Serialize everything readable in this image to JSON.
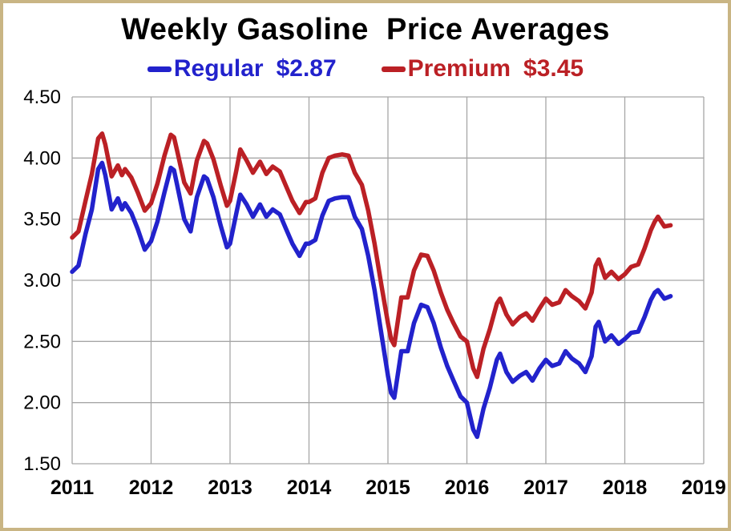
{
  "window": {
    "border_color": "#c9b584",
    "background": "#ffffff"
  },
  "chart_data": {
    "type": "line",
    "title": "Weekly Gasoline  Price Averages",
    "xlabel": "",
    "ylabel": "",
    "xlim": [
      2011,
      2019
    ],
    "ylim": [
      1.5,
      4.5
    ],
    "grid": true,
    "grid_color": "#a6a6a6",
    "legend_position": "top-center",
    "legend": [
      {
        "label": "Regular",
        "value": "$2.87",
        "color": "#2222cc"
      },
      {
        "label": "Premium",
        "value": "$3.45",
        "color": "#bb2025"
      }
    ],
    "x_ticks": [
      2011,
      2012,
      2013,
      2014,
      2015,
      2016,
      2017,
      2018,
      2019
    ],
    "x_tick_labels": [
      "2011",
      "2012",
      "2013",
      "2014",
      "2015",
      "2016",
      "2017",
      "2018",
      "2019"
    ],
    "y_ticks": [
      1.5,
      2.0,
      2.5,
      3.0,
      3.5,
      4.0,
      4.5
    ],
    "y_tick_labels": [
      "1.50",
      "2.00",
      "2.50",
      "3.00",
      "3.50",
      "4.00",
      "4.50"
    ],
    "x": [
      2011.0,
      2011.08,
      2011.17,
      2011.25,
      2011.33,
      2011.38,
      2011.42,
      2011.5,
      2011.58,
      2011.63,
      2011.67,
      2011.75,
      2011.83,
      2011.92,
      2012.0,
      2012.08,
      2012.17,
      2012.25,
      2012.29,
      2012.33,
      2012.42,
      2012.5,
      2012.58,
      2012.67,
      2012.71,
      2012.79,
      2012.88,
      2012.96,
      2013.0,
      2013.08,
      2013.13,
      2013.21,
      2013.29,
      2013.38,
      2013.46,
      2013.54,
      2013.63,
      2013.71,
      2013.79,
      2013.88,
      2013.96,
      2014.0,
      2014.08,
      2014.17,
      2014.25,
      2014.33,
      2014.42,
      2014.5,
      2014.58,
      2014.67,
      2014.75,
      2014.83,
      2014.92,
      2015.0,
      2015.04,
      2015.08,
      2015.17,
      2015.25,
      2015.33,
      2015.42,
      2015.5,
      2015.58,
      2015.67,
      2015.75,
      2015.83,
      2015.92,
      2016.0,
      2016.08,
      2016.13,
      2016.21,
      2016.29,
      2016.38,
      2016.42,
      2016.5,
      2016.58,
      2016.67,
      2016.75,
      2016.83,
      2016.92,
      2017.0,
      2017.08,
      2017.17,
      2017.25,
      2017.33,
      2017.42,
      2017.5,
      2017.58,
      2017.63,
      2017.67,
      2017.75,
      2017.83,
      2017.92,
      2018.0,
      2018.08,
      2018.17,
      2018.25,
      2018.33,
      2018.38,
      2018.42,
      2018.5,
      2018.58
    ],
    "series": [
      {
        "name": "Regular",
        "color": "#2222cc",
        "values": [
          3.07,
          3.12,
          3.38,
          3.58,
          3.91,
          3.96,
          3.86,
          3.58,
          3.67,
          3.58,
          3.63,
          3.55,
          3.42,
          3.25,
          3.32,
          3.48,
          3.72,
          3.92,
          3.9,
          3.78,
          3.5,
          3.4,
          3.68,
          3.85,
          3.83,
          3.68,
          3.45,
          3.27,
          3.3,
          3.55,
          3.7,
          3.62,
          3.52,
          3.62,
          3.52,
          3.58,
          3.54,
          3.42,
          3.3,
          3.2,
          3.3,
          3.3,
          3.33,
          3.53,
          3.65,
          3.67,
          3.68,
          3.68,
          3.52,
          3.42,
          3.2,
          2.92,
          2.55,
          2.22,
          2.08,
          2.04,
          2.42,
          2.42,
          2.65,
          2.8,
          2.78,
          2.65,
          2.45,
          2.3,
          2.18,
          2.05,
          2.0,
          1.78,
          1.72,
          1.95,
          2.12,
          2.35,
          2.4,
          2.25,
          2.17,
          2.22,
          2.25,
          2.18,
          2.28,
          2.35,
          2.3,
          2.32,
          2.42,
          2.36,
          2.32,
          2.25,
          2.38,
          2.62,
          2.66,
          2.5,
          2.55,
          2.48,
          2.52,
          2.57,
          2.58,
          2.7,
          2.84,
          2.9,
          2.92,
          2.85,
          2.87
        ]
      },
      {
        "name": "Premium",
        "color": "#bb2025",
        "values": [
          3.35,
          3.4,
          3.65,
          3.87,
          4.16,
          4.2,
          4.11,
          3.85,
          3.94,
          3.86,
          3.91,
          3.84,
          3.72,
          3.57,
          3.63,
          3.79,
          4.02,
          4.19,
          4.17,
          4.06,
          3.8,
          3.71,
          3.98,
          4.14,
          4.12,
          3.99,
          3.78,
          3.61,
          3.65,
          3.9,
          4.07,
          3.98,
          3.88,
          3.97,
          3.87,
          3.93,
          3.89,
          3.77,
          3.65,
          3.55,
          3.64,
          3.64,
          3.67,
          3.88,
          4.0,
          4.02,
          4.03,
          4.02,
          3.88,
          3.78,
          3.57,
          3.3,
          2.95,
          2.65,
          2.52,
          2.47,
          2.86,
          2.86,
          3.08,
          3.21,
          3.2,
          3.08,
          2.9,
          2.76,
          2.65,
          2.54,
          2.5,
          2.28,
          2.21,
          2.44,
          2.6,
          2.81,
          2.85,
          2.72,
          2.64,
          2.7,
          2.73,
          2.67,
          2.77,
          2.85,
          2.8,
          2.82,
          2.92,
          2.87,
          2.83,
          2.77,
          2.9,
          3.12,
          3.17,
          3.02,
          3.07,
          3.01,
          3.05,
          3.11,
          3.13,
          3.26,
          3.41,
          3.48,
          3.52,
          3.44,
          3.45
        ]
      }
    ]
  }
}
